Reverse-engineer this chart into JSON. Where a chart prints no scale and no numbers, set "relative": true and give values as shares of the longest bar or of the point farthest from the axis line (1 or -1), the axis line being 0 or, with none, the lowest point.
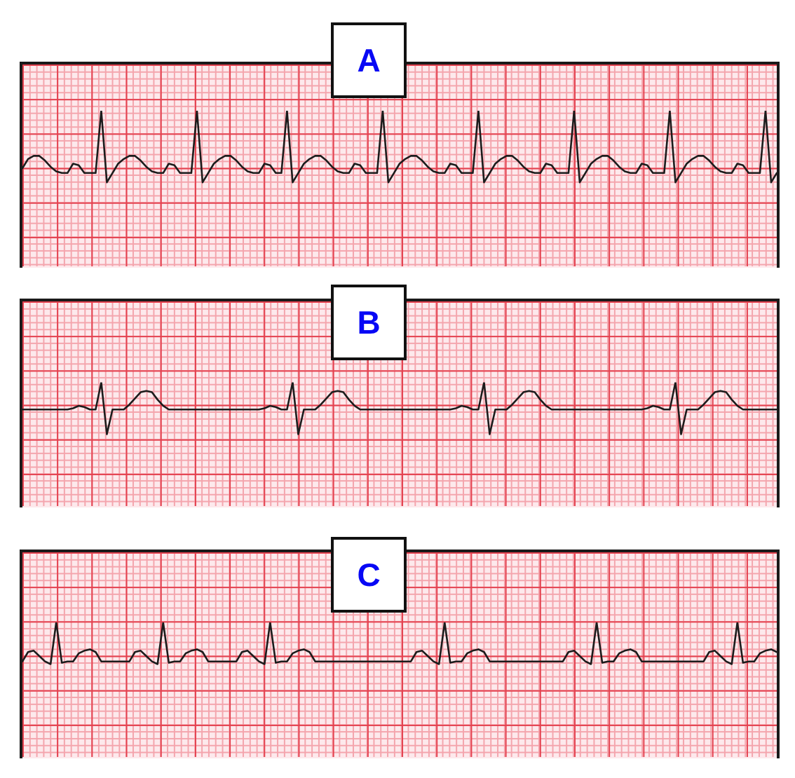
{
  "chart_data": [
    {
      "type": "line",
      "title": "A",
      "relative": true,
      "color": "#1c1c1c",
      "categories": [
        null,
        null,
        null,
        null,
        null,
        null,
        null,
        null,
        null,
        null,
        null,
        null,
        null,
        null,
        null,
        null,
        null,
        null,
        null,
        null,
        null,
        null,
        null,
        null,
        null,
        null,
        null,
        null,
        null,
        null,
        null,
        null,
        null,
        null,
        null,
        null,
        null,
        null,
        null,
        null,
        null,
        null,
        null,
        null,
        null,
        null,
        null,
        null,
        null,
        null,
        null,
        null,
        null,
        null,
        null,
        null,
        null,
        null,
        null,
        null,
        null,
        null,
        null,
        null,
        null,
        null,
        null,
        null,
        null,
        null,
        null,
        null,
        null,
        null,
        null,
        null,
        null,
        null,
        null,
        null,
        null,
        null,
        null,
        null,
        null,
        null,
        null,
        null,
        null,
        null,
        null,
        null,
        null,
        null,
        null,
        null,
        null,
        null,
        null,
        null,
        null,
        null,
        null,
        null,
        null,
        null,
        null,
        null,
        null,
        null,
        null,
        null,
        null,
        null,
        null,
        null,
        null,
        null,
        null,
        null,
        null,
        null,
        null,
        null,
        null,
        null,
        null,
        null,
        null,
        null,
        null,
        null,
        null,
        null,
        null
      ],
      "values": [
        0.63,
        0.69,
        0.71,
        0.71,
        0.68,
        0.64,
        0.61,
        0.6,
        0.6,
        0.66,
        0.65,
        0.6,
        0.6,
        0.6,
        1,
        0.54,
        0.6,
        0.66,
        0.69,
        0.71,
        0.71,
        0.68,
        0.64,
        0.61,
        0.6,
        0.6,
        0.66,
        0.65,
        0.6,
        0.6,
        0.6,
        1,
        0.54,
        0.6,
        0.66,
        0.69,
        0.71,
        0.71,
        0.68,
        0.64,
        0.61,
        0.6,
        0.6,
        0.66,
        0.65,
        0.6,
        0.6,
        1,
        0.54,
        0.6,
        0.66,
        0.69,
        0.71,
        0.71,
        0.68,
        0.64,
        0.61,
        0.6,
        0.6,
        0.66,
        0.65,
        0.6,
        0.6,
        0.6,
        1,
        0.54,
        0.6,
        0.66,
        0.69,
        0.71,
        0.71,
        0.68,
        0.64,
        0.61,
        0.6,
        0.6,
        0.66,
        0.65,
        0.6,
        0.6,
        0.6,
        1,
        0.54,
        0.6,
        0.66,
        0.69,
        0.71,
        0.71,
        0.68,
        0.64,
        0.61,
        0.6,
        0.6,
        0.66,
        0.65,
        0.6,
        0.6,
        0.6,
        1,
        0.54,
        0.6,
        0.66,
        0.69,
        0.71,
        0.71,
        0.68,
        0.64,
        0.61,
        0.6,
        0.6,
        0.66,
        0.65,
        0.6,
        0.6,
        0.6,
        1,
        0.54,
        0.6,
        0.66,
        0.69,
        0.71,
        0.71,
        0.68,
        0.64,
        0.61,
        0.6,
        0.6,
        0.66,
        0.65,
        0.6,
        0.6,
        0.6,
        1,
        0.54,
        0.6
      ]
    },
    {
      "type": "line",
      "title": "B",
      "relative": true,
      "color": "#1c1c1c",
      "categories": [
        null,
        null,
        null,
        null,
        null,
        null,
        null,
        null,
        null,
        null,
        null,
        null,
        null,
        null,
        null,
        null,
        null,
        null,
        null,
        null,
        null,
        null,
        null,
        null,
        null,
        null,
        null,
        null,
        null,
        null,
        null,
        null,
        null,
        null,
        null,
        null,
        null,
        null,
        null,
        null,
        null,
        null,
        null,
        null,
        null,
        null,
        null,
        null,
        null,
        null,
        null,
        null,
        null,
        null,
        null,
        null,
        null,
        null,
        null,
        null,
        null,
        null,
        null,
        null,
        null,
        null,
        null,
        null,
        null,
        null,
        null,
        null,
        null,
        null,
        null,
        null,
        null,
        null,
        null,
        null,
        null,
        null,
        null,
        null,
        null,
        null,
        null,
        null,
        null,
        null,
        null,
        null,
        null,
        null,
        null,
        null,
        null,
        null,
        null,
        null,
        null,
        null,
        null,
        null,
        null,
        null,
        null,
        null,
        null,
        null,
        null,
        null,
        null,
        null,
        null,
        null,
        null,
        null,
        null,
        null,
        null,
        null,
        null,
        null,
        null,
        null,
        null,
        null,
        null,
        null,
        null,
        null,
        null,
        null,
        null
      ],
      "values": [
        0.78,
        0.78,
        0.78,
        0.78,
        0.78,
        0.78,
        0.78,
        0.78,
        0.78,
        0.79,
        0.81,
        0.8,
        0.78,
        0.78,
        1,
        0.58,
        0.78,
        0.78,
        0.78,
        0.82,
        0.87,
        0.92,
        0.93,
        0.92,
        0.86,
        0.81,
        0.78,
        0.78,
        0.78,
        0.78,
        0.78,
        0.78,
        0.78,
        0.78,
        0.78,
        0.78,
        0.78,
        0.78,
        0.78,
        0.78,
        0.78,
        0.78,
        0.78,
        0.79,
        0.81,
        0.8,
        0.78,
        0.78,
        1,
        0.58,
        0.78,
        0.78,
        0.78,
        0.82,
        0.87,
        0.92,
        0.93,
        0.92,
        0.86,
        0.81,
        0.78,
        0.78,
        0.78,
        0.78,
        0.78,
        0.78,
        0.78,
        0.78,
        0.78,
        0.78,
        0.78,
        0.78,
        0.78,
        0.78,
        0.78,
        0.78,
        0.78,
        0.79,
        0.81,
        0.8,
        0.78,
        0.78,
        1,
        0.58,
        0.78,
        0.78,
        0.78,
        0.82,
        0.87,
        0.92,
        0.93,
        0.92,
        0.86,
        0.81,
        0.78,
        0.78,
        0.78,
        0.78,
        0.78,
        0.78,
        0.78,
        0.78,
        0.78,
        0.78,
        0.78,
        0.78,
        0.78,
        0.78,
        0.78,
        0.78,
        0.78,
        0.79,
        0.81,
        0.8,
        0.78,
        0.78,
        1,
        0.58,
        0.78,
        0.78,
        0.78,
        0.82,
        0.87,
        0.92,
        0.93,
        0.92,
        0.86,
        0.81,
        0.78,
        0.78,
        0.78,
        0.78,
        0.78,
        0.78,
        0.78
      ]
    },
    {
      "type": "line",
      "title": "C",
      "relative": true,
      "color": "#1c1c1c",
      "categories": [
        null,
        null,
        null,
        null,
        null,
        null,
        null,
        null,
        null,
        null,
        null,
        null,
        null,
        null,
        null,
        null,
        null,
        null,
        null,
        null,
        null,
        null,
        null,
        null,
        null,
        null,
        null,
        null,
        null,
        null,
        null,
        null,
        null,
        null,
        null,
        null,
        null,
        null,
        null,
        null,
        null,
        null,
        null,
        null,
        null,
        null,
        null,
        null,
        null,
        null,
        null,
        null,
        null,
        null,
        null,
        null,
        null,
        null,
        null,
        null,
        null,
        null,
        null,
        null,
        null,
        null,
        null,
        null,
        null,
        null,
        null,
        null,
        null,
        null,
        null,
        null,
        null,
        null,
        null,
        null,
        null,
        null,
        null,
        null,
        null,
        null,
        null,
        null,
        null,
        null,
        null,
        null,
        null,
        null,
        null,
        null,
        null,
        null,
        null,
        null,
        null,
        null,
        null,
        null,
        null,
        null,
        null,
        null,
        null,
        null,
        null,
        null,
        null,
        null,
        null,
        null,
        null,
        null,
        null,
        null,
        null,
        null,
        null,
        null,
        null,
        null,
        null,
        null,
        null,
        null,
        null,
        null,
        null,
        null,
        null
      ],
      "values": [
        0.71,
        0.78,
        0.79,
        0.75,
        0.71,
        0.69,
        1,
        0.7,
        0.71,
        0.71,
        0.77,
        0.79,
        0.8,
        0.78,
        0.71,
        0.71,
        0.71,
        0.71,
        0.71,
        0.71,
        0.78,
        0.79,
        0.75,
        0.71,
        0.69,
        1,
        0.7,
        0.71,
        0.71,
        0.77,
        0.79,
        0.8,
        0.78,
        0.71,
        0.71,
        0.71,
        0.71,
        0.71,
        0.71,
        0.78,
        0.79,
        0.75,
        0.71,
        0.69,
        1,
        0.7,
        0.71,
        0.71,
        0.77,
        0.79,
        0.8,
        0.78,
        0.71,
        0.71,
        0.71,
        0.71,
        0.71,
        0.71,
        0.71,
        0.71,
        0.71,
        0.71,
        0.71,
        0.71,
        0.71,
        0.71,
        0.71,
        0.71,
        0.71,
        0.71,
        0.78,
        0.79,
        0.75,
        0.71,
        0.69,
        1,
        0.7,
        0.71,
        0.71,
        0.77,
        0.79,
        0.8,
        0.78,
        0.71,
        0.71,
        0.71,
        0.71,
        0.71,
        0.71,
        0.71,
        0.71,
        0.71,
        0.71,
        0.71,
        0.71,
        0.71,
        0.71,
        0.78,
        0.79,
        0.75,
        0.71,
        0.69,
        1,
        0.7,
        0.71,
        0.71,
        0.77,
        0.79,
        0.8,
        0.78,
        0.71,
        0.71,
        0.71,
        0.71,
        0.71,
        0.71,
        0.71,
        0.71,
        0.71,
        0.71,
        0.71,
        0.71,
        0.78,
        0.79,
        0.75,
        0.71,
        0.69,
        1,
        0.7,
        0.71,
        0.71,
        0.77,
        0.79,
        0.8,
        0.78
      ]
    }
  ]
}
